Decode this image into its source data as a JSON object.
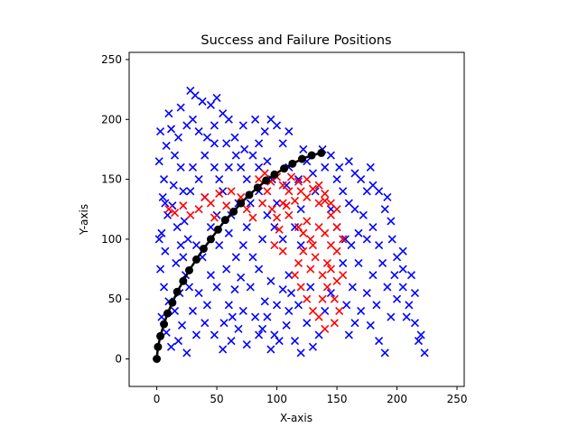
{
  "chart_data": {
    "type": "scatter",
    "title": "Success and Failure Positions",
    "xlabel": "X-axis",
    "ylabel": "Y-axis",
    "xlim": [
      -23,
      256
    ],
    "ylim": [
      -23,
      256
    ],
    "xticks": [
      "0",
      "50",
      "100",
      "150",
      "200",
      "250"
    ],
    "yticks": [
      "0",
      "50",
      "100",
      "150",
      "200",
      "250"
    ],
    "grid": false,
    "legend": "none",
    "series": [
      {
        "marker": "x",
        "color": "#0000ff",
        "points": [
          [
            3,
            190
          ],
          [
            8,
            178
          ],
          [
            2,
            165
          ],
          [
            6,
            150
          ],
          [
            12,
            192
          ],
          [
            5,
            135
          ],
          [
            9,
            120
          ],
          [
            4,
            105
          ],
          [
            7,
            90
          ],
          [
            3,
            75
          ],
          [
            6,
            60
          ],
          [
            10,
            48
          ],
          [
            4,
            35
          ],
          [
            8,
            22
          ],
          [
            12,
            10
          ],
          [
            15,
            170
          ],
          [
            18,
            185
          ],
          [
            20,
            160
          ],
          [
            14,
            145
          ],
          [
            22,
            140
          ],
          [
            17,
            110
          ],
          [
            20,
            95
          ],
          [
            16,
            80
          ],
          [
            24,
            70
          ],
          [
            19,
            55
          ],
          [
            15,
            40
          ],
          [
            21,
            28
          ],
          [
            18,
            15
          ],
          [
            25,
            5
          ],
          [
            23,
            115
          ],
          [
            10,
            205
          ],
          [
            20,
            210
          ],
          [
            28,
            224
          ],
          [
            32,
            220
          ],
          [
            30,
            200
          ],
          [
            38,
            215
          ],
          [
            45,
            212
          ],
          [
            50,
            218
          ],
          [
            35,
            190
          ],
          [
            42,
            185
          ],
          [
            48,
            195
          ],
          [
            55,
            205
          ],
          [
            60,
            200
          ],
          [
            25,
            195
          ],
          [
            40,
            170
          ],
          [
            30,
            160
          ],
          [
            35,
            150
          ],
          [
            28,
            140
          ],
          [
            40,
            135
          ],
          [
            48,
            160
          ],
          [
            52,
            150
          ],
          [
            55,
            140
          ],
          [
            45,
            110
          ],
          [
            52,
            95
          ],
          [
            60,
            105
          ],
          [
            38,
            85
          ],
          [
            45,
            70
          ],
          [
            50,
            60
          ],
          [
            35,
            55
          ],
          [
            30,
            40
          ],
          [
            40,
            30
          ],
          [
            48,
            20
          ],
          [
            55,
            8
          ],
          [
            62,
            15
          ],
          [
            68,
            25
          ],
          [
            60,
            45
          ],
          [
            65,
            58
          ],
          [
            70,
            68
          ],
          [
            58,
            75
          ],
          [
            66,
            85
          ],
          [
            72,
            95
          ],
          [
            75,
            110
          ],
          [
            80,
            85
          ],
          [
            85,
            75
          ],
          [
            78,
            60
          ],
          [
            90,
            48
          ],
          [
            82,
            35
          ],
          [
            88,
            25
          ],
          [
            75,
            12
          ],
          [
            95,
            8
          ],
          [
            98,
            20
          ],
          [
            92,
            35
          ],
          [
            100,
            45
          ],
          [
            105,
            58
          ],
          [
            95,
            65
          ],
          [
            110,
            40
          ],
          [
            108,
            28
          ],
          [
            115,
            15
          ],
          [
            120,
            5
          ],
          [
            112,
            55
          ],
          [
            70,
            160
          ],
          [
            75,
            150
          ],
          [
            80,
            170
          ],
          [
            85,
            180
          ],
          [
            65,
            185
          ],
          [
            72,
            195
          ],
          [
            90,
            190
          ],
          [
            95,
            200
          ],
          [
            100,
            195
          ],
          [
            105,
            180
          ],
          [
            85,
            140
          ],
          [
            78,
            130
          ],
          [
            92,
            120
          ],
          [
            98,
            110
          ],
          [
            88,
            100
          ],
          [
            105,
            100
          ],
          [
            115,
            110
          ],
          [
            120,
            95
          ],
          [
            100,
            130
          ],
          [
            68,
            130
          ],
          [
            62,
            120
          ],
          [
            110,
            160
          ],
          [
            118,
            150
          ],
          [
            125,
            165
          ],
          [
            130,
            155
          ],
          [
            140,
            160
          ],
          [
            145,
            170
          ],
          [
            150,
            150
          ],
          [
            155,
            140
          ],
          [
            160,
            130
          ],
          [
            165,
            125
          ],
          [
            170,
            150
          ],
          [
            175,
            140
          ],
          [
            172,
            120
          ],
          [
            168,
            105
          ],
          [
            162,
            95
          ],
          [
            175,
            100
          ],
          [
            180,
            110
          ],
          [
            185,
            95
          ],
          [
            190,
            125
          ],
          [
            195,
            115
          ],
          [
            188,
            80
          ],
          [
            180,
            70
          ],
          [
            175,
            55
          ],
          [
            170,
            40
          ],
          [
            165,
            30
          ],
          [
            160,
            20
          ],
          [
            158,
            45
          ],
          [
            163,
            60
          ],
          [
            178,
            28
          ],
          [
            185,
            15
          ],
          [
            190,
            5
          ],
          [
            195,
            35
          ],
          [
            200,
            50
          ],
          [
            205,
            60
          ],
          [
            210,
            45
          ],
          [
            215,
            30
          ],
          [
            220,
            20
          ],
          [
            223,
            5
          ],
          [
            212,
            70
          ],
          [
            200,
            85
          ],
          [
            196,
            100
          ],
          [
            205,
            90
          ],
          [
            185,
            140
          ],
          [
            178,
            160
          ],
          [
            160,
            165
          ],
          [
            150,
            110
          ],
          [
            155,
            80
          ],
          [
            145,
            55
          ],
          [
            140,
            40
          ],
          [
            135,
            20
          ],
          [
            130,
            10
          ],
          [
            125,
            30
          ],
          [
            118,
            45
          ],
          [
            128,
            60
          ],
          [
            2,
            100
          ],
          [
            7,
            130
          ],
          [
            13,
            128
          ],
          [
            26,
            100
          ],
          [
            33,
            95
          ],
          [
            22,
            85
          ],
          [
            27,
            60
          ],
          [
            33,
            20
          ],
          [
            42,
            45
          ],
          [
            56,
            30
          ],
          [
            63,
            35
          ],
          [
            72,
            40
          ],
          [
            85,
            20
          ],
          [
            102,
            15
          ],
          [
            110,
            70
          ],
          [
            50,
            120
          ],
          [
            58,
            180
          ],
          [
            66,
            170
          ],
          [
            82,
            200
          ],
          [
            92,
            165
          ],
          [
            110,
            190
          ],
          [
            122,
            175
          ],
          [
            138,
            175
          ],
          [
            152,
            160
          ],
          [
            165,
            155
          ],
          [
            180,
            145
          ],
          [
            192,
            135
          ],
          [
            198,
            70
          ],
          [
            208,
            35
          ],
          [
            218,
            15
          ],
          [
            215,
            55
          ],
          [
            205,
            75
          ],
          [
            192,
            60
          ],
          [
            183,
            45
          ],
          [
            168,
            80
          ],
          [
            157,
            100
          ],
          [
            145,
            125
          ],
          [
            132,
            140
          ],
          [
            120,
            125
          ],
          [
            108,
            145
          ],
          [
            96,
            150
          ],
          [
            85,
            160
          ],
          [
            73,
            175
          ],
          [
            60,
            160
          ],
          [
            48,
            180
          ]
        ]
      },
      {
        "marker": "x",
        "color": "#ff0000",
        "points": [
          [
            10,
            125
          ],
          [
            15,
            122
          ],
          [
            22,
            128
          ],
          [
            28,
            120
          ],
          [
            35,
            125
          ],
          [
            40,
            135
          ],
          [
            45,
            130
          ],
          [
            52,
            138
          ],
          [
            58,
            128
          ],
          [
            48,
            118
          ],
          [
            62,
            140
          ],
          [
            70,
            135
          ],
          [
            75,
            125
          ],
          [
            80,
            118
          ],
          [
            88,
            130
          ],
          [
            92,
            140
          ],
          [
            96,
            125
          ],
          [
            100,
            118
          ],
          [
            105,
            130
          ],
          [
            110,
            140
          ],
          [
            115,
            132
          ],
          [
            120,
            140
          ],
          [
            125,
            135
          ],
          [
            130,
            142
          ],
          [
            135,
            130
          ],
          [
            140,
            138
          ],
          [
            145,
            130
          ],
          [
            150,
            125
          ],
          [
            95,
            148
          ],
          [
            90,
            155
          ],
          [
            85,
            150
          ],
          [
            100,
            152
          ],
          [
            105,
            145
          ],
          [
            112,
            152
          ],
          [
            118,
            148
          ],
          [
            125,
            150
          ],
          [
            135,
            145
          ],
          [
            140,
            132
          ],
          [
            145,
            120
          ],
          [
            150,
            110
          ],
          [
            155,
            100
          ],
          [
            150,
            90
          ],
          [
            145,
            95
          ],
          [
            140,
            105
          ],
          [
            135,
            110
          ],
          [
            128,
            100
          ],
          [
            122,
            90
          ],
          [
            118,
            80
          ],
          [
            115,
            70
          ],
          [
            120,
            60
          ],
          [
            125,
            50
          ],
          [
            130,
            40
          ],
          [
            128,
            75
          ],
          [
            132,
            85
          ],
          [
            138,
            70
          ],
          [
            142,
            60
          ],
          [
            148,
            50
          ],
          [
            152,
            40
          ],
          [
            148,
            30
          ],
          [
            140,
            25
          ],
          [
            135,
            35
          ],
          [
            138,
            50
          ],
          [
            142,
            80
          ],
          [
            155,
            70
          ],
          [
            150,
            65
          ],
          [
            145,
            75
          ],
          [
            130,
            95
          ],
          [
            122,
            105
          ],
          [
            125,
            115
          ],
          [
            118,
            110
          ],
          [
            110,
            120
          ],
          [
            108,
            128
          ],
          [
            102,
            108
          ],
          [
            98,
            95
          ],
          [
            105,
            90
          ]
        ]
      },
      {
        "marker": "o-",
        "color": "#000000",
        "points": [
          [
            0,
            0
          ],
          [
            1,
            10
          ],
          [
            3,
            19
          ],
          [
            6,
            29
          ],
          [
            9,
            38
          ],
          [
            13,
            47
          ],
          [
            17,
            56
          ],
          [
            22,
            65
          ],
          [
            27,
            74
          ],
          [
            33,
            83
          ],
          [
            39,
            92
          ],
          [
            45,
            100
          ],
          [
            51,
            108
          ],
          [
            57,
            116
          ],
          [
            64,
            123
          ],
          [
            70,
            130
          ],
          [
            77,
            137
          ],
          [
            84,
            143
          ],
          [
            91,
            149
          ],
          [
            98,
            154
          ],
          [
            106,
            159
          ],
          [
            113,
            163
          ],
          [
            121,
            167
          ],
          [
            129,
            170
          ],
          [
            137,
            172
          ]
        ]
      }
    ]
  }
}
